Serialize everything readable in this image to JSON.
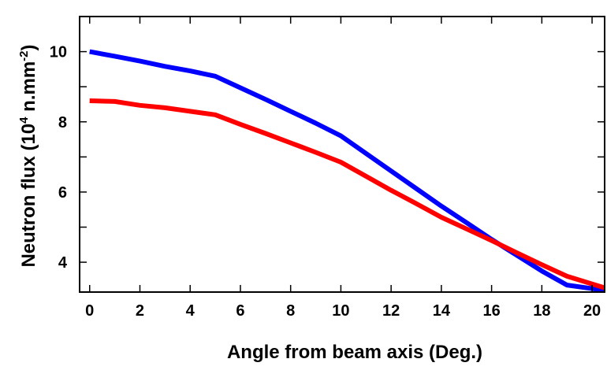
{
  "chart_data": {
    "type": "line",
    "title": "",
    "xlabel": "Angle from beam axis (Deg.)",
    "ylabel": {
      "prefix": "Neutron flux (10",
      "sup1": "4",
      "middle": " n.mm",
      "sup2": "-2",
      "suffix": ")"
    },
    "xlim": [
      -0.4,
      20.5
    ],
    "ylim": [
      3.15,
      11
    ],
    "xticks": [
      0,
      2,
      4,
      6,
      8,
      10,
      12,
      14,
      16,
      18,
      20
    ],
    "yticks_labeled": [
      4,
      6,
      8,
      10
    ],
    "yticks_minor": [
      3,
      5,
      7,
      9,
      11
    ],
    "grid": false,
    "series": [
      {
        "color": "#0000ff",
        "x": [
          0,
          1,
          2,
          3,
          4,
          5,
          6,
          7,
          8,
          9,
          10,
          11,
          12,
          13,
          14,
          15,
          16,
          17,
          18,
          19,
          20.5
        ],
        "y": [
          10.0,
          9.87,
          9.73,
          9.58,
          9.45,
          9.3,
          8.97,
          8.64,
          8.3,
          7.96,
          7.6,
          7.1,
          6.6,
          6.1,
          5.6,
          5.13,
          4.65,
          4.2,
          3.75,
          3.35,
          3.2
        ]
      },
      {
        "color": "#ff0000",
        "x": [
          0,
          1,
          2,
          3,
          4,
          5,
          6,
          7,
          8,
          9,
          10,
          11,
          12,
          13,
          14,
          15,
          16,
          17,
          18,
          19,
          20.5
        ],
        "y": [
          8.6,
          8.58,
          8.47,
          8.4,
          8.3,
          8.2,
          7.93,
          7.67,
          7.4,
          7.13,
          6.85,
          6.45,
          6.05,
          5.67,
          5.28,
          4.95,
          4.62,
          4.27,
          3.93,
          3.6,
          3.27
        ]
      }
    ]
  }
}
